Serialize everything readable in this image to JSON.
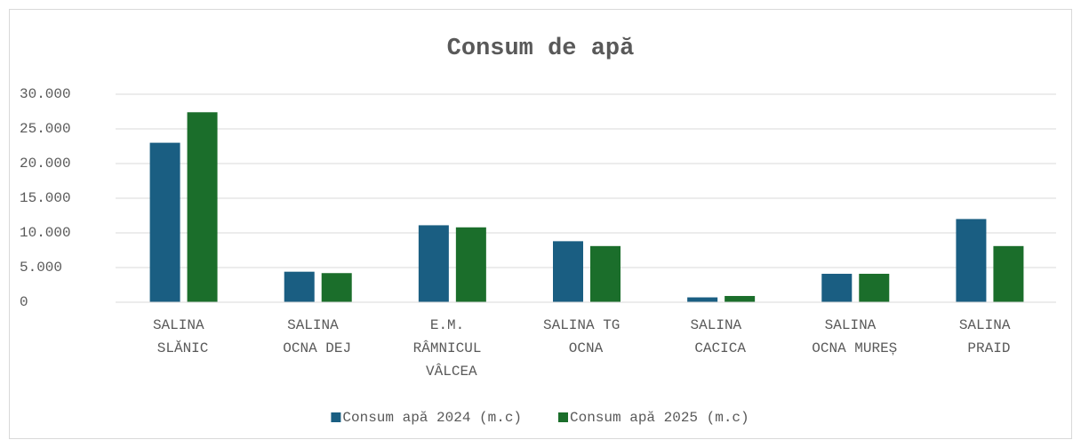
{
  "chart_data": {
    "type": "bar",
    "title": "Consum de apă",
    "categories": [
      "SALINA SLĂNIC",
      "SALINA OCNA DEJ",
      "E.M. RÂMNICUL VÂLCEA",
      "SALINA TG OCNA",
      "SALINA CACICA",
      "SALINA OCNA MUREȘ",
      "SALINA PRAID"
    ],
    "series": [
      {
        "name": "Consum apă 2024 (m.c)",
        "color": "#1a5e82",
        "values": [
          23000,
          4400,
          11100,
          8800,
          700,
          4100,
          12000
        ]
      },
      {
        "name": "Consum apă 2025 (m.c)",
        "color": "#1b6e2b",
        "values": [
          27400,
          4200,
          10800,
          8100,
          900,
          4100,
          8100
        ]
      }
    ],
    "ylim": [
      0,
      30000
    ],
    "yticks": [
      0,
      {
        "value": 5000,
        "label": "5.000"
      },
      {
        "value": 10000,
        "label": "10.000"
      },
      {
        "value": 15000,
        "label": "15.000"
      },
      {
        "value": 20000,
        "label": "20.000"
      },
      {
        "value": 25000,
        "label": "25.000"
      },
      {
        "value": 30000,
        "label": "30.000"
      }
    ],
    "grid": true,
    "legend": "bottom"
  }
}
